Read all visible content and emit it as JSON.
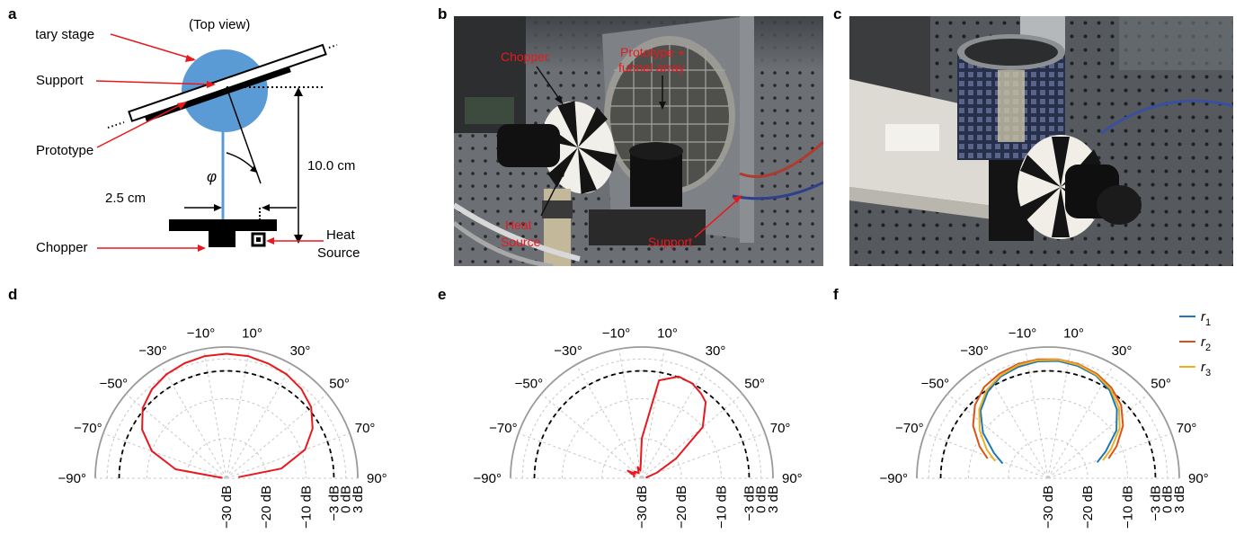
{
  "panels": {
    "a": {
      "letter": "a",
      "top_view": "(Top view)",
      "rotary_stage": "Rotary stage",
      "support": "Support",
      "prototype": "Prototype",
      "angle": "φ",
      "distance": "10.0 cm",
      "offset": "2.5 cm",
      "chopper": "Chopper",
      "heat_source_line1": "Heat",
      "heat_source_line2": "Source"
    },
    "b": {
      "letter": "b",
      "chopper": "Chopper",
      "prototype_line1": "Prototype +",
      "prototype_line2": "funnel array",
      "heat_line1": "Heat",
      "heat_line2": "Source",
      "support": "Support"
    },
    "c": {
      "letter": "c"
    },
    "d": {
      "letter": "d"
    },
    "e": {
      "letter": "e"
    },
    "f": {
      "letter": "f"
    }
  },
  "polar_angle_labels": [
    "−90°",
    "−70°",
    "−50°",
    "−30°",
    "−10°",
    "10°",
    "30°",
    "50°",
    "70°",
    "90°"
  ],
  "polar_radial_labels": [
    "−30 dB",
    "−20 dB",
    "−10 dB",
    "−3 dB",
    "0 dB",
    "3 dB"
  ],
  "colors": {
    "measured": "#e8191e",
    "reference": "#000000",
    "r1": "#1f77b4",
    "r2": "#d95319",
    "r3": "#edb120",
    "grid": "#c8c8c8"
  },
  "chart_data": [
    {
      "panel": "d",
      "type": "line",
      "coordinate_system": "polar",
      "angle_range_deg": [
        -90,
        90
      ],
      "radial_range_db": [
        -30,
        3
      ],
      "radial_ticks_db": [
        -30,
        -20,
        -10,
        -3,
        0,
        3
      ],
      "angle_ticks_deg": [
        -90,
        -70,
        -50,
        -30,
        -10,
        10,
        30,
        50,
        70,
        90
      ],
      "reference_db": -3,
      "series": [
        {
          "color": "#e8191e",
          "angles": [
            -85,
            -80,
            -70,
            -60,
            -50,
            -40,
            -30,
            -20,
            -10,
            0,
            10,
            20,
            30,
            40,
            50,
            60,
            70,
            80,
            85
          ],
          "values": [
            -29,
            -17,
            -10,
            -5.5,
            -2.5,
            -0.8,
            0.2,
            0.8,
            1.2,
            1.3,
            1.2,
            0.7,
            0.2,
            -0.7,
            -2.2,
            -5,
            -9,
            -16,
            -27
          ]
        }
      ]
    },
    {
      "panel": "e",
      "type": "line",
      "coordinate_system": "polar",
      "angle_range_deg": [
        -90,
        90
      ],
      "radial_range_db": [
        -30,
        3
      ],
      "radial_ticks_db": [
        -30,
        -20,
        -10,
        -3,
        0,
        3
      ],
      "angle_ticks_deg": [
        -90,
        -70,
        -50,
        -30,
        -10,
        10,
        30,
        50,
        70,
        90
      ],
      "reference_db": -3,
      "series": [
        {
          "color": "#e8191e",
          "angles": [
            -84,
            -80,
            -70,
            -62,
            -55,
            -48,
            -40,
            -30,
            -20,
            -10,
            0,
            10,
            20,
            28,
            35,
            40,
            50,
            60,
            70,
            84
          ],
          "values": [
            -28,
            -28,
            -28,
            -26,
            -28,
            -27.5,
            -28,
            -28.5,
            -27,
            -28,
            -20,
            -5,
            -2.8,
            -3,
            -4,
            -5,
            -10,
            -20,
            -26,
            -29
          ]
        }
      ]
    },
    {
      "panel": "f",
      "type": "line",
      "coordinate_system": "polar",
      "angle_range_deg": [
        -90,
        90
      ],
      "radial_range_db": [
        -30,
        3
      ],
      "radial_ticks_db": [
        -30,
        -20,
        -10,
        -3,
        0,
        3
      ],
      "angle_ticks_deg": [
        -90,
        -70,
        -50,
        -30,
        -10,
        10,
        30,
        50,
        70,
        90
      ],
      "reference_db": -3,
      "legend_position": "top-right",
      "series": [
        {
          "name": "r1",
          "color": "#1f77b4",
          "angles": [
            -72,
            -65,
            -55,
            -45,
            -35,
            -25,
            -15,
            -5,
            5,
            15,
            25,
            35,
            45,
            55,
            65,
            72
          ],
          "values": [
            -18,
            -15,
            -10,
            -6,
            -3.5,
            -1.8,
            -1,
            -0.5,
            -0.4,
            -0.8,
            -1.5,
            -3,
            -5.5,
            -9,
            -14,
            -17
          ]
        },
        {
          "name": "r2",
          "color": "#d95319",
          "angles": [
            -72,
            -65,
            -55,
            -45,
            -35,
            -25,
            -15,
            -5,
            5,
            15,
            25,
            35,
            45,
            55,
            65,
            72
          ],
          "values": [
            -14,
            -11,
            -7,
            -4,
            -2,
            -1,
            -0.3,
            0,
            0,
            -0.3,
            -1,
            -2.2,
            -4,
            -7,
            -11,
            -14
          ]
        },
        {
          "name": "r3",
          "color": "#edb120",
          "angles": [
            -72,
            -65,
            -55,
            -45,
            -35,
            -25,
            -15,
            -5,
            5,
            15,
            25,
            35,
            45,
            55,
            65,
            72
          ],
          "values": [
            -16,
            -13,
            -9,
            -5.5,
            -3,
            -1.5,
            -0.6,
            -0.2,
            -0.1,
            -0.5,
            -1.3,
            -2.6,
            -4.8,
            -8,
            -12.5,
            -15.5
          ]
        }
      ]
    }
  ]
}
